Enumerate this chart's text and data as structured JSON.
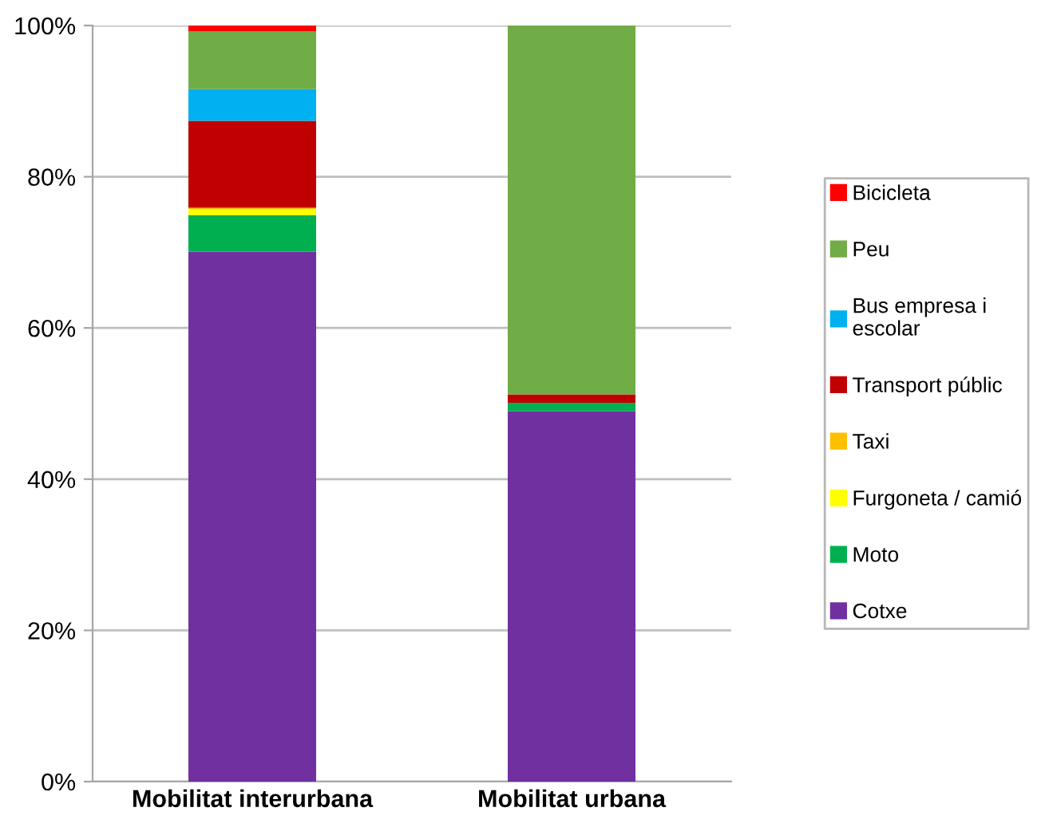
{
  "chart_data": {
    "type": "bar",
    "stacked": true,
    "categories": [
      "Mobilitat interurbana",
      "Mobilitat urbana"
    ],
    "series": [
      {
        "name": "Cotxe",
        "color": "#7030a0",
        "values": [
          70.1,
          49.0
        ]
      },
      {
        "name": "Moto",
        "color": "#00b050",
        "values": [
          4.8,
          1.1
        ]
      },
      {
        "name": "Furgoneta / camió",
        "color": "#ffff00",
        "values": [
          0.8,
          0
        ]
      },
      {
        "name": "Taxi",
        "color": "#ffc000",
        "values": [
          0.2,
          0
        ]
      },
      {
        "name": "Transport públic",
        "color": "#c00000",
        "values": [
          11.5,
          1.1
        ]
      },
      {
        "name": "Bus empresa i escolar",
        "color": "#00b0f0",
        "values": [
          4.2,
          0
        ]
      },
      {
        "name": "Peu",
        "color": "#70ad47",
        "values": [
          7.6,
          48.8
        ]
      },
      {
        "name": "Bicicleta",
        "color": "#ff0000",
        "values": [
          0.8,
          0
        ]
      }
    ],
    "ylim": [
      0,
      100
    ],
    "yticks": [
      {
        "value": 0,
        "label": "0%"
      },
      {
        "value": 20,
        "label": "20%"
      },
      {
        "value": 40,
        "label": "40%"
      },
      {
        "value": 60,
        "label": "60%"
      },
      {
        "value": 80,
        "label": "80%"
      },
      {
        "value": 100,
        "label": "100%"
      }
    ],
    "grid": "y",
    "legend": "right"
  }
}
